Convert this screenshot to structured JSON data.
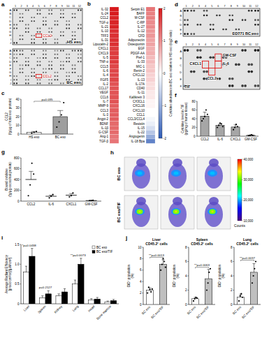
{
  "panels": {
    "a": {
      "panel_label": "a",
      "columns": [
        1,
        2,
        3,
        4,
        5,
        6,
        7,
        8,
        9,
        10,
        11,
        12
      ],
      "rows": [
        "A",
        "B",
        "C",
        "D",
        "E",
        "F",
        "G",
        "H",
        "I",
        "J"
      ],
      "blots": [
        {
          "title": "HS exo",
          "highlight": "CCL2"
        },
        {
          "title": "BC exo",
          "highlight": "CCL2"
        }
      ]
    },
    "b": {
      "panel_label": "b",
      "colorbar_label": "Cytokine abundance in BC exo relative to HS exo (log2 ratio)",
      "colorbar_range": [
        -2,
        2
      ],
      "colorbar_ticks": [
        -2,
        -1,
        0,
        1,
        2
      ],
      "columns": [
        {
          "names": [
            "IL-32",
            "IL-24",
            "CCL2",
            "TGF-α",
            "IL-21",
            "IL-10",
            "TFF3",
            "IL-31",
            "Lipocalin-2",
            "CXCL1",
            "CXCL9",
            "IL-5",
            "TNF-α",
            "CCL5",
            "IL-6",
            "IL-4",
            "FGF5",
            "IL-2",
            "CCL17",
            "VEGF",
            "CCL6",
            "IL-7",
            "MMP-9",
            "CCL3",
            "IL-3",
            "Angpt-2",
            "BDNF",
            "IL-1β",
            "G-CSF",
            "Ang-1",
            "TGF-β"
          ],
          "values": [
            2,
            2,
            1.9,
            1.9,
            1.9,
            1.8,
            1.8,
            1.8,
            1.8,
            1.7,
            1.7,
            1.7,
            1.7,
            1.6,
            1.6,
            1.6,
            1.6,
            1.5,
            1.5,
            1.5,
            1.5,
            1.5,
            1.4,
            1.4,
            1.4,
            1.4,
            1.3,
            1.3,
            1.3,
            1.2,
            1.2
          ]
        },
        {
          "names": [
            "Serpin E1",
            "BAFF",
            "M-CSF",
            "C-RP",
            "IL-27",
            "IL-12",
            "CFD",
            "Adiponectin",
            "Osteopontin",
            "EGF",
            "PDGF-AA",
            "Pref-1",
            "IL-33",
            "MIC-1",
            "Renin-2",
            "CXCL12",
            "IL-13",
            "IL-17A",
            "CD40",
            "IL-11",
            "Kallikrein 3",
            "CX3CL1",
            "CXCL16",
            "CXCL10",
            "CCL1",
            "CCL3/CCL4",
            "Resistin",
            "IL-15",
            "IL-22",
            "Angiogenin",
            "IL-18 Bpa"
          ],
          "values": [
            1.2,
            1.1,
            1.1,
            1.0,
            1.0,
            0.9,
            0.9,
            0.8,
            0.8,
            0.7,
            0.7,
            0.6,
            0.6,
            0.5,
            0.5,
            0.4,
            0.4,
            0.3,
            0.3,
            0.2,
            0.2,
            0.1,
            0.1,
            0,
            0,
            -0.1,
            -0.2,
            -0.4,
            -0.7,
            -1.0,
            -1.5
          ]
        }
      ]
    },
    "d": {
      "panel_label": "d",
      "title": "EO771 BC exo",
      "columns": [
        1,
        2,
        3,
        4,
        5,
        6,
        7,
        8,
        9,
        10,
        11,
        12
      ],
      "rows": [
        "A",
        "B",
        "C",
        "D",
        "E",
        "F"
      ]
    },
    "e": {
      "panel_label": "e",
      "title": "TIF",
      "columns": [
        1,
        2,
        3,
        4,
        5,
        6,
        7,
        8,
        9,
        10,
        11,
        12
      ],
      "rows": [
        "A",
        "B",
        "C",
        "D",
        "E",
        "F"
      ],
      "highlights": [
        "CXCL1",
        "IL-6",
        "GM-CSF",
        "CCL2"
      ]
    },
    "h": {
      "panel_label": "h",
      "rows": [
        "BC exo",
        "BC exo/TIF"
      ],
      "colorbar_label": "Counts",
      "colorbar_range": [
        10000,
        40000
      ],
      "colorbar_ticks": [
        {
          "value": 10000,
          "label": "10,000"
        },
        {
          "value": 20000,
          "label": "20,000"
        },
        {
          "value": 30000,
          "label": "30,000"
        },
        {
          "value": 40000,
          "label": "40,000"
        }
      ]
    }
  },
  "chart_data": [
    {
      "panel_label": "c",
      "type": "bar",
      "y_label": "CCL2 (fg/μg of total exo protein)",
      "categories": [
        "HS exo",
        "BC exo"
      ],
      "values": [
        2,
        20
      ],
      "errors": [
        1,
        7
      ],
      "points": [
        [
          1,
          2,
          3
        ],
        [
          8,
          14,
          22,
          36
        ]
      ],
      "colors": [
        "#ffffff",
        "#9e9e9e"
      ],
      "ylim": [
        0,
        40
      ],
      "yticks": [
        0,
        10,
        20,
        30,
        40
      ],
      "annotations": [
        {
          "text": "p=0.035"
        }
      ]
    },
    {
      "panel_label": "f",
      "type": "bar",
      "y_label": "Cytokine level in TIF (pg/mg of tumor tissue)",
      "categories": [
        "CCL2",
        "IL-6",
        "CXCL1",
        "GM-CSF"
      ],
      "values": [
        46,
        25,
        21,
        2
      ],
      "errors": [
        9,
        4,
        5,
        1
      ],
      "points": [
        [
          35,
          40,
          45,
          60,
          50
        ],
        [
          20,
          25,
          30,
          28,
          22
        ],
        [
          15,
          20,
          27,
          22
        ],
        [
          1,
          2,
          3,
          2
        ]
      ],
      "color": "#a6a6a6",
      "ylim": [
        0,
        80
      ],
      "yticks": [
        0,
        20,
        40,
        60,
        80
      ]
    },
    {
      "panel_label": "g",
      "type": "dot",
      "y_label": "Bound cytokine (fg/μg exosomal protein)",
      "categories": [
        "CCL2",
        "IL-6",
        "CXCL1",
        "GM-CSF"
      ],
      "values": [
        400,
        90,
        110,
        10
      ],
      "errors": [
        150,
        20,
        30,
        4
      ],
      "points": [
        [
          100,
          300,
          700,
          500
        ],
        [
          60,
          90,
          120
        ],
        [
          80,
          100,
          150
        ],
        [
          5,
          10,
          15
        ]
      ],
      "color": "#000000",
      "ylim": [
        0,
        800
      ],
      "yticks": [
        0,
        200,
        400,
        600,
        800
      ]
    },
    {
      "panel_label": "i",
      "type": "bar",
      "y_label": "Average Radiant Efficiency [p/sec/cm²/sr]/[μW/cm²]",
      "categories": [
        "Liver",
        "Spleen",
        "Kidney",
        "Lung",
        "Heart",
        "Bone marrow"
      ],
      "series": [
        {
          "name": "BC exo",
          "color": "#ffffff",
          "values": [
            0.8,
            0.15,
            0.2,
            0.5,
            0.1,
            0.05
          ],
          "errors": [
            0.15,
            0.05,
            0.05,
            0.1,
            0.03,
            0.02
          ]
        },
        {
          "name": "BC exo/TIF",
          "color": "#000000",
          "values": [
            1.2,
            0.25,
            0.3,
            1.0,
            0.12,
            0.08
          ],
          "errors": [
            0.2,
            0.08,
            0.08,
            0.15,
            0.04,
            0.03
          ]
        }
      ],
      "ylim": [
        0,
        1.5
      ],
      "yticks": [
        0,
        0.5,
        {
          "value": 1,
          "label": "1.0"
        },
        1.5
      ],
      "legend": "top-right",
      "annotations": [
        {
          "category": "Liver",
          "text": "*p=0.0438"
        },
        {
          "category": "Spleen",
          "text": "p=0.2127"
        },
        {
          "category": "Lung",
          "text": "**p=0.0073"
        }
      ]
    },
    {
      "panel_label": "j",
      "type": "bar",
      "title": "Liver CD45.2⁺ cells",
      "y_label": "DiD⁺ population (%)",
      "categories": [
        "BC exo",
        "BC exo/TIF"
      ],
      "values": [
        2.5,
        7
      ],
      "errors": [
        0.4,
        0.8
      ],
      "points": [
        [
          2,
          3,
          2.6,
          2.2,
          2.7
        ],
        [
          6,
          7,
          8,
          7.5,
          6.5
        ]
      ],
      "colors": [
        "#ffffff",
        "#bfbfbf"
      ],
      "ylim": [
        0,
        10
      ],
      "yticks": [
        0,
        2,
        4,
        6,
        8,
        10
      ],
      "annotations": [
        {
          "text": "**p=0.0013"
        }
      ]
    },
    {
      "type": "bar",
      "title": "Spleen CD45.2⁺ cells",
      "y_label": "DiD⁺ population (%)",
      "categories": [
        "BC exo",
        "BC exo/TIF"
      ],
      "values": [
        0.8,
        3.6
      ],
      "errors": [
        0.2,
        1.3
      ],
      "points": [
        [
          0.5,
          0.8,
          1.0,
          0.9
        ],
        [
          2,
          3,
          4.5,
          5
        ]
      ],
      "colors": [
        "#ffffff",
        "#bfbfbf"
      ],
      "ylim": [
        0,
        8
      ],
      "yticks": [
        0,
        2,
        4,
        6,
        8
      ],
      "annotations": [
        {
          "text": "**p=0.0063"
        }
      ]
    },
    {
      "type": "bar",
      "title": "Lung CD45.2⁺ cells",
      "y_label": "DiD⁺ population (%)",
      "categories": [
        "BC exo",
        "BC exo/TIF"
      ],
      "values": [
        1.05,
        4.5
      ],
      "errors": [
        0.4,
        1.2
      ],
      "points": [
        [
          0.5,
          1.2,
          1.5,
          1.0
        ],
        [
          3,
          4,
          5,
          6
        ]
      ],
      "colors": [
        "#ffffff",
        "#bfbfbf"
      ],
      "ylim": [
        0,
        8
      ],
      "yticks": [
        0,
        2,
        4,
        6,
        8
      ],
      "annotations": [
        {
          "text": "**p=0.0037"
        }
      ]
    }
  ]
}
